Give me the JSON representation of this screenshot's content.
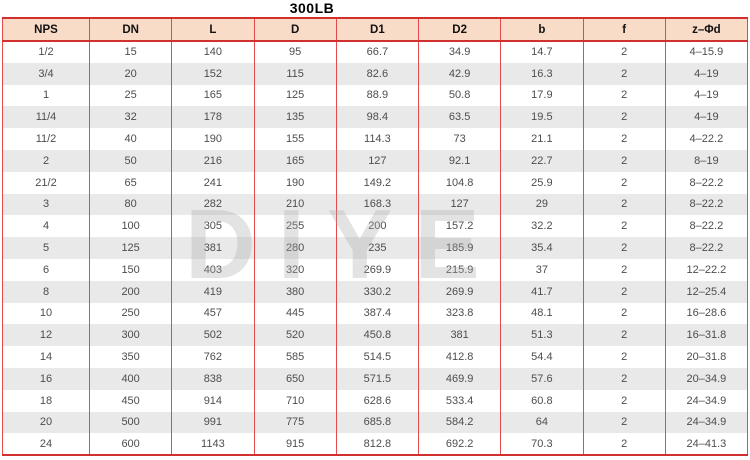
{
  "title": "300LB",
  "watermark": "DIYE",
  "colors": {
    "header_bg": "#f8dcc8",
    "grid_red": "#e14b4b",
    "strong_red": "#d22f2f",
    "stripe_gray": "#e9e9e9",
    "cell_text": "#4d4d4d",
    "header_text": "#111111",
    "watermark_gray": "#ababab"
  },
  "table": {
    "columns": [
      "NPS",
      "DN",
      "L",
      "D",
      "D1",
      "D2",
      "b",
      "f",
      "z–Φd"
    ],
    "rows": [
      [
        "1/2",
        "15",
        "140",
        "95",
        "66.7",
        "34.9",
        "14.7",
        "2",
        "4–15.9"
      ],
      [
        "3/4",
        "20",
        "152",
        "115",
        "82.6",
        "42.9",
        "16.3",
        "2",
        "4–19"
      ],
      [
        "1",
        "25",
        "165",
        "125",
        "88.9",
        "50.8",
        "17.9",
        "2",
        "4–19"
      ],
      [
        "11/4",
        "32",
        "178",
        "135",
        "98.4",
        "63.5",
        "19.5",
        "2",
        "4–19"
      ],
      [
        "11/2",
        "40",
        "190",
        "155",
        "114.3",
        "73",
        "21.1",
        "2",
        "4–22.2"
      ],
      [
        "2",
        "50",
        "216",
        "165",
        "127",
        "92.1",
        "22.7",
        "2",
        "8–19"
      ],
      [
        "21/2",
        "65",
        "241",
        "190",
        "149.2",
        "104.8",
        "25.9",
        "2",
        "8–22.2"
      ],
      [
        "3",
        "80",
        "282",
        "210",
        "168.3",
        "127",
        "29",
        "2",
        "8–22.2"
      ],
      [
        "4",
        "100",
        "305",
        "255",
        "200",
        "157.2",
        "32.2",
        "2",
        "8–22.2"
      ],
      [
        "5",
        "125",
        "381",
        "280",
        "235",
        "185.9",
        "35.4",
        "2",
        "8–22.2"
      ],
      [
        "6",
        "150",
        "403",
        "320",
        "269.9",
        "215.9",
        "37",
        "2",
        "12–22.2"
      ],
      [
        "8",
        "200",
        "419",
        "380",
        "330.2",
        "269.9",
        "41.7",
        "2",
        "12–25.4"
      ],
      [
        "10",
        "250",
        "457",
        "445",
        "387.4",
        "323.8",
        "48.1",
        "2",
        "16–28.6"
      ],
      [
        "12",
        "300",
        "502",
        "520",
        "450.8",
        "381",
        "51.3",
        "2",
        "16–31.8"
      ],
      [
        "14",
        "350",
        "762",
        "585",
        "514.5",
        "412.8",
        "54.4",
        "2",
        "20–31.8"
      ],
      [
        "16",
        "400",
        "838",
        "650",
        "571.5",
        "469.9",
        "57.6",
        "2",
        "20–34.9"
      ],
      [
        "18",
        "450",
        "914",
        "710",
        "628.6",
        "533.4",
        "60.8",
        "2",
        "24–34.9"
      ],
      [
        "20",
        "500",
        "991",
        "775",
        "685.8",
        "584.2",
        "64",
        "2",
        "24–34.9"
      ],
      [
        "24",
        "600",
        "1143",
        "915",
        "812.8",
        "692.2",
        "70.3",
        "2",
        "24–41.3"
      ]
    ]
  }
}
